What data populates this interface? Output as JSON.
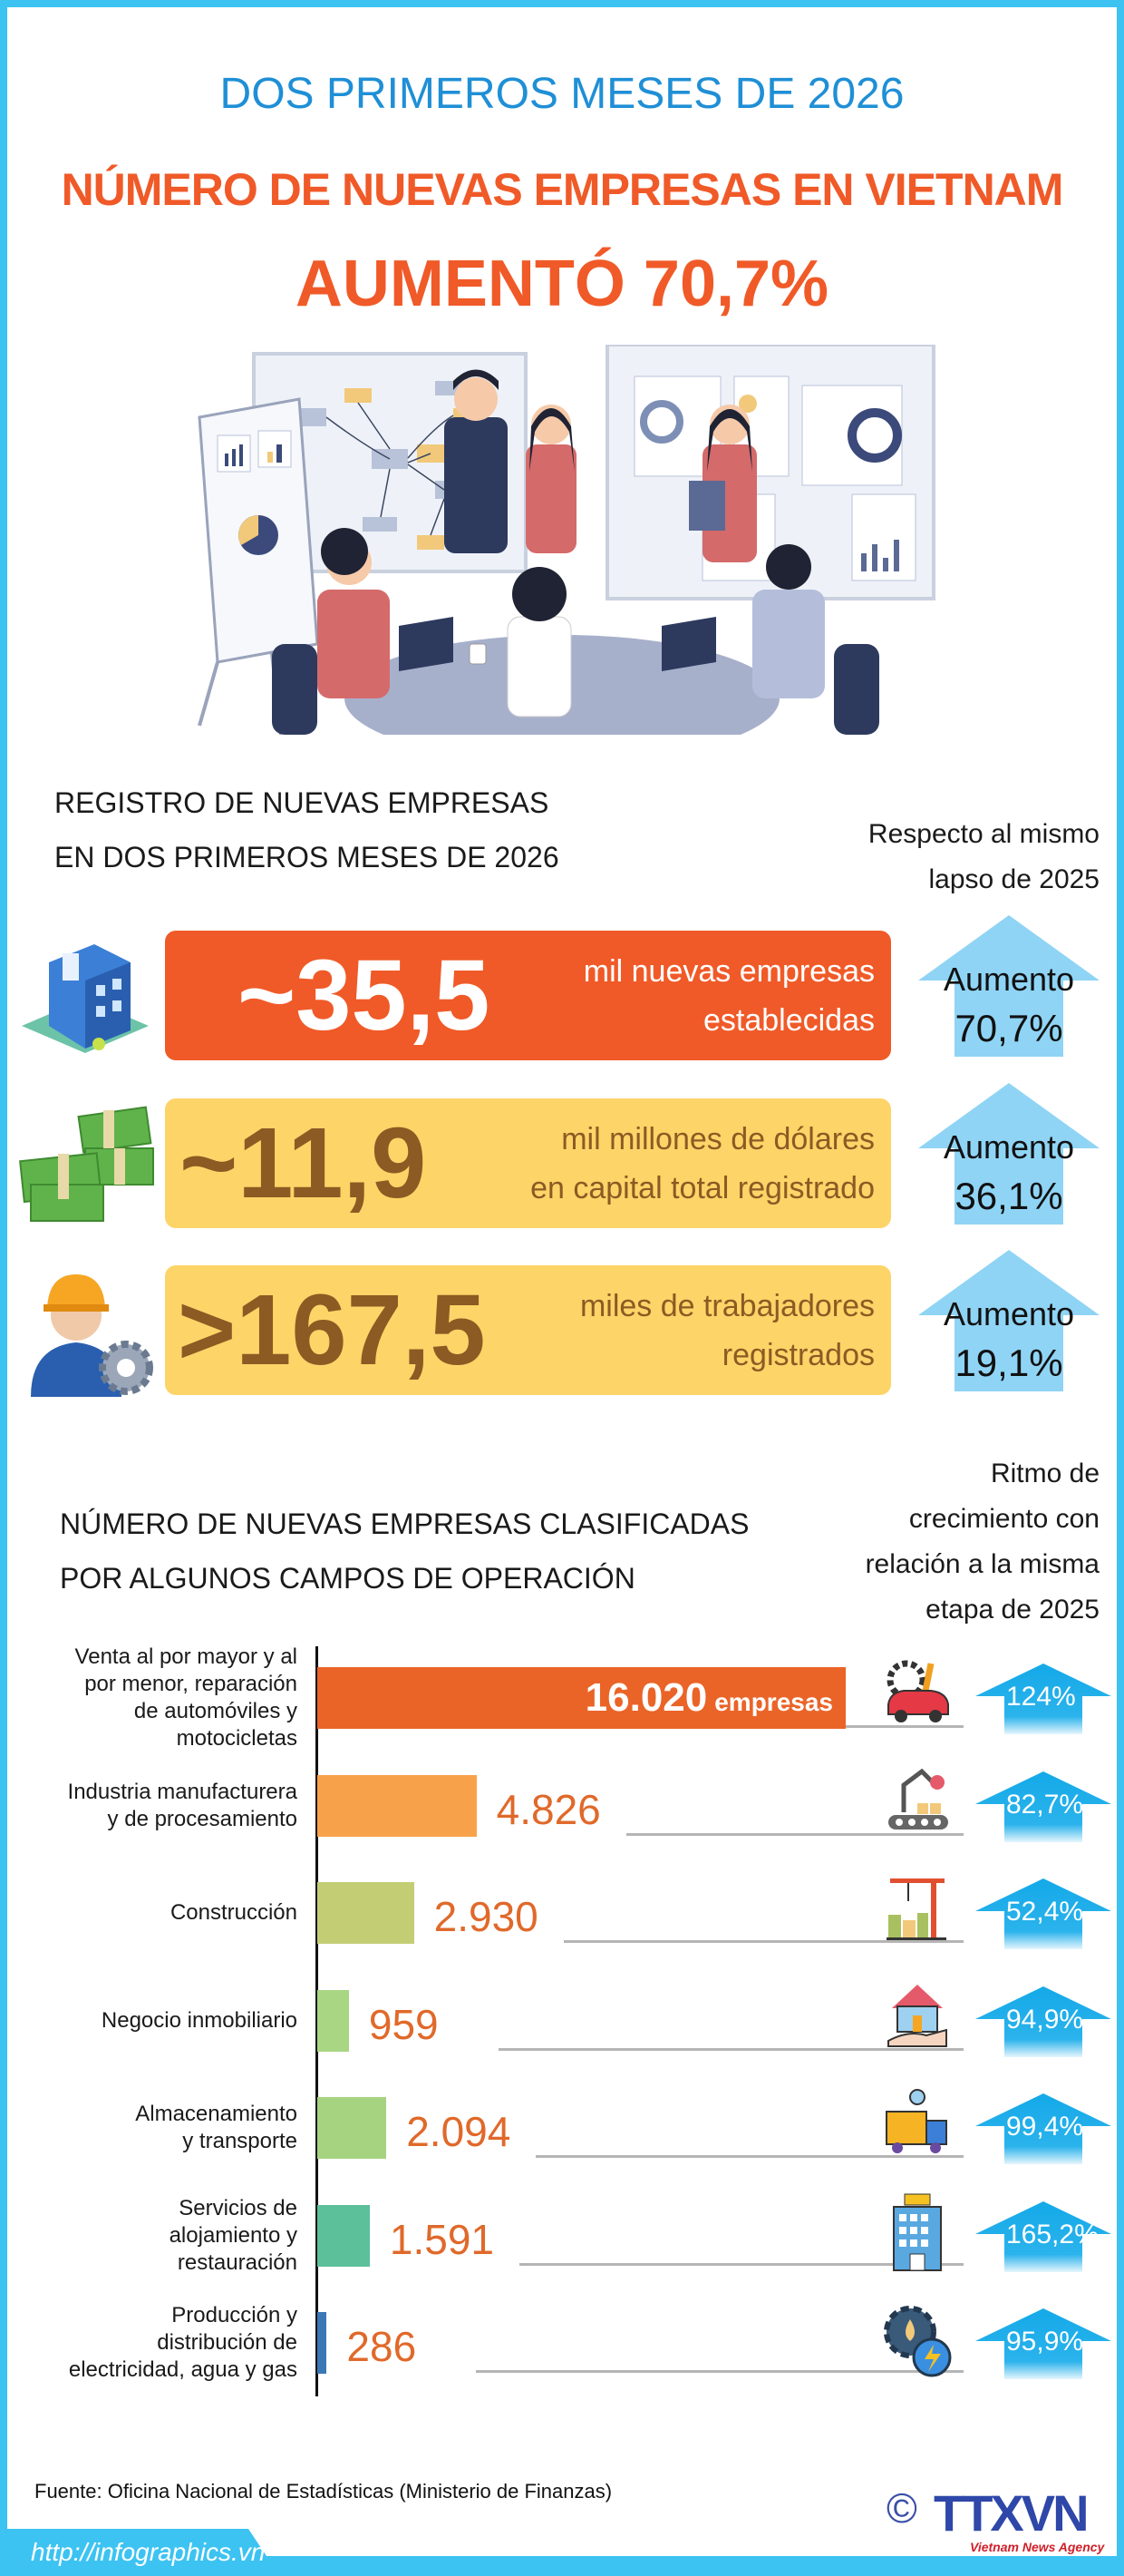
{
  "header": {
    "period": "DOS PRIMEROS MESES DE 2026",
    "headline": "NÚMERO DE NUEVAS EMPRESAS EN VIETNAM",
    "growth": "AUMENTÓ 70,7%"
  },
  "registration": {
    "heading_line1": "REGISTRO DE NUEVAS EMPRESAS",
    "heading_line2": "EN DOS PRIMEROS MESES DE 2026",
    "compare_line1": "Respecto al mismo",
    "compare_line2": "lapso de 2025",
    "items": [
      {
        "icon": "office-building-icon",
        "value": "~35,5",
        "line1": "mil nuevas empresas",
        "line2": "establecidas",
        "change_label": "Aumento",
        "change": "70,7%",
        "box_color": "#f05a28",
        "text_color": "#ffffff"
      },
      {
        "icon": "money-stack-icon",
        "value": "~11,9",
        "line1": "mil millones de dólares",
        "line2": "en capital total registrado",
        "change_label": "Aumento",
        "change": "36,1%",
        "box_color": "#fdd468",
        "text_color": "#8c5a23"
      },
      {
        "icon": "worker-gear-icon",
        "value": ">167,5",
        "line1": "miles de trabajadores",
        "line2": "registrados",
        "change_label": "Aumento",
        "change": "19,1%",
        "box_color": "#fdd468",
        "text_color": "#8c5a23"
      }
    ],
    "arrow_color": "#8fd4f5"
  },
  "sectors": {
    "heading_line1": "NÚMERO DE NUEVAS EMPRESAS CLASIFICADAS",
    "heading_line2": "POR ALGUNOS CAMPOS DE OPERACIÓN",
    "growth_heading": [
      "Ritmo de",
      "crecimiento con",
      "relación a la misma",
      "etapa de 2025"
    ],
    "unit": "empresas"
  },
  "chart_data": {
    "type": "bar",
    "orientation": "horizontal",
    "categories": [
      [
        "Venta al por mayor y al",
        "por menor, reparación",
        "de automóviles y",
        "motocicletas"
      ],
      [
        "Industria manufacturera",
        "y de procesamiento"
      ],
      [
        "Construcción"
      ],
      [
        "Negocio inmobiliario"
      ],
      [
        "Almacenamiento",
        "y transporte"
      ],
      [
        "Servicios de",
        "alojamiento y",
        "restauración"
      ],
      [
        "Producción y",
        "distribución de",
        "electricidad, agua y gas"
      ]
    ],
    "values": [
      16020,
      4826,
      2930,
      959,
      2094,
      1591,
      286
    ],
    "value_labels": [
      "16.020",
      "4.826",
      "2.930",
      "959",
      "2.094",
      "1.591",
      "286"
    ],
    "growth": [
      "124%",
      "82,7%",
      "52,4%",
      "94,9%",
      "99,4%",
      "165,2%",
      "95,9%"
    ],
    "icons": [
      "car-repair-icon",
      "factory-robot-icon",
      "construction-crane-icon",
      "house-in-hand-icon",
      "delivery-truck-icon",
      "hotel-icon",
      "energy-water-gear-icon"
    ],
    "colors": [
      "#ea6428",
      "#f7a24a",
      "#c3cd74",
      "#a8d683",
      "#a6d380",
      "#5cc09a",
      "#3a78b5"
    ]
  },
  "footer": {
    "source": "Fuente: Oficina Nacional de Estadísticas (Ministerio de Finanzas)",
    "copyright": "©",
    "logo": "TTXVN",
    "logo_sub": "Vietnam News Agency",
    "url": "http://infographics.vn"
  },
  "colors": {
    "frame": "#3cc3f2",
    "title_blue": "#1f8fd6",
    "accent_orange": "#f05a28",
    "value_orange": "#e0692a"
  }
}
